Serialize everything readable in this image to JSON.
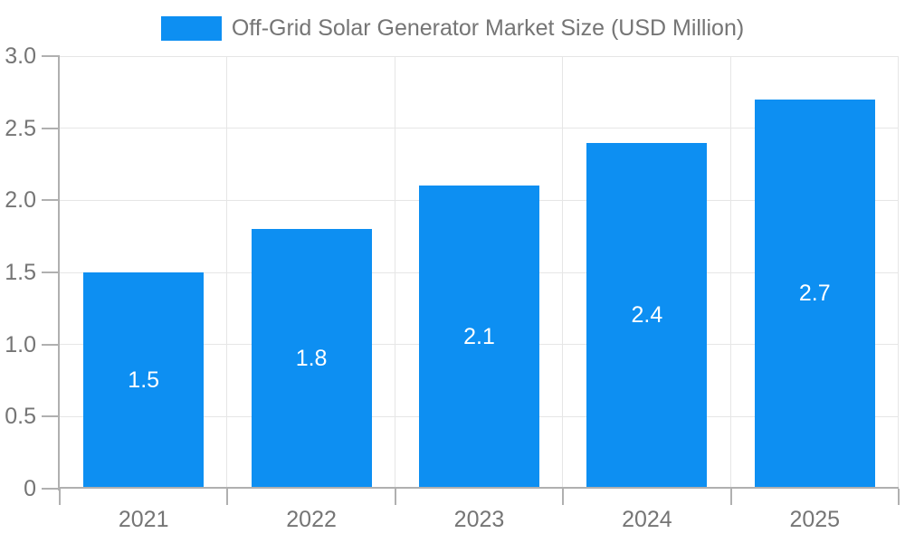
{
  "chart_data": {
    "type": "bar",
    "title": "Off-Grid Solar Generator Market Size (USD Million)",
    "categories": [
      "2021",
      "2022",
      "2023",
      "2024",
      "2025"
    ],
    "values": [
      1.5,
      1.8,
      2.1,
      2.4,
      2.7
    ],
    "bar_labels": [
      "1.5",
      "1.8",
      "2.1",
      "2.4",
      "2.7"
    ],
    "y_ticks": [
      "3.0",
      "2.5",
      "2.0",
      "1.5",
      "1.0",
      "0.5",
      "0"
    ],
    "ylim": [
      0,
      3.0
    ],
    "xlabel": "",
    "ylabel": "",
    "grid": true,
    "legend_position": "top-center",
    "bar_label_position": "center",
    "colors": {
      "bar": "#0d8ff2",
      "bar_label": "#ffffff",
      "title_text": "#757575",
      "axis_label": "#757575",
      "gridline": "#e6e6e6",
      "axis_line": "#b0b0b0",
      "background": "#ffffff"
    }
  }
}
